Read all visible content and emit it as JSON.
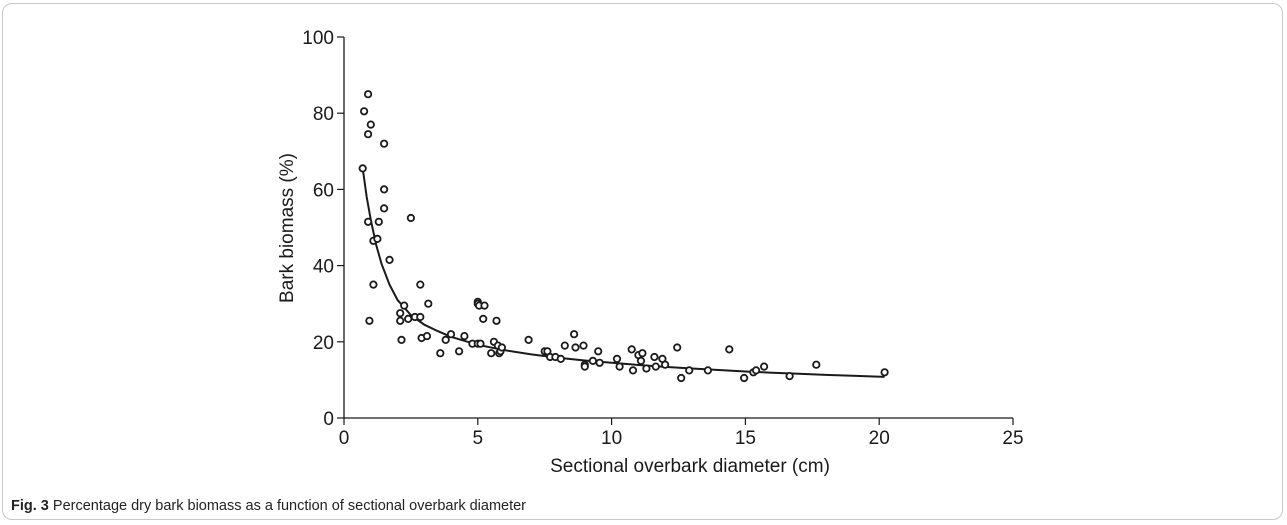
{
  "caption": {
    "label": "Fig. 3",
    "text": "Percentage dry bark biomass as a function of sectional overbark diameter"
  },
  "chart_data": {
    "type": "scatter",
    "xlabel": "Sectional overbark diameter (cm)",
    "ylabel": "Bark biomass (%)",
    "xlim": [
      0,
      25
    ],
    "ylim": [
      0,
      100
    ],
    "xticks": [
      0,
      5,
      10,
      15,
      20,
      25
    ],
    "yticks": [
      0,
      20,
      40,
      60,
      80,
      100
    ],
    "grid": false,
    "legend": "none",
    "series": [
      {
        "kind": "points",
        "marker": "open-circle",
        "color": "#1a1a1a",
        "points": [
          [
            0.7,
            65.5
          ],
          [
            0.75,
            80.5
          ],
          [
            0.9,
            85
          ],
          [
            0.9,
            74.5
          ],
          [
            1.0,
            77
          ],
          [
            0.9,
            51.5
          ],
          [
            0.95,
            25.5
          ],
          [
            1.1,
            46.5
          ],
          [
            1.1,
            35
          ],
          [
            1.25,
            47
          ],
          [
            1.3,
            51.5
          ],
          [
            1.5,
            72
          ],
          [
            1.5,
            60
          ],
          [
            1.5,
            55
          ],
          [
            1.7,
            41.5
          ],
          [
            2.1,
            27.5
          ],
          [
            2.1,
            25.5
          ],
          [
            2.15,
            20.5
          ],
          [
            2.25,
            29.5
          ],
          [
            2.4,
            26
          ],
          [
            2.5,
            52.5
          ],
          [
            2.65,
            26.5
          ],
          [
            2.85,
            35
          ],
          [
            2.85,
            26.5
          ],
          [
            2.9,
            21
          ],
          [
            3.1,
            21.5
          ],
          [
            3.15,
            30
          ],
          [
            3.6,
            17
          ],
          [
            3.8,
            20.5
          ],
          [
            4.0,
            22
          ],
          [
            4.3,
            17.5
          ],
          [
            4.5,
            21.5
          ],
          [
            4.8,
            19.5
          ],
          [
            5.0,
            30.5
          ],
          [
            5.0,
            30
          ],
          [
            5.05,
            29.5
          ],
          [
            5.0,
            19.5
          ],
          [
            5.1,
            19.5
          ],
          [
            5.2,
            26
          ],
          [
            5.25,
            29.5
          ],
          [
            5.5,
            17
          ],
          [
            5.6,
            20
          ],
          [
            5.7,
            25.5
          ],
          [
            5.75,
            19
          ],
          [
            5.8,
            17
          ],
          [
            5.85,
            17.5
          ],
          [
            5.9,
            18.5
          ],
          [
            6.9,
            20.5
          ],
          [
            7.5,
            17.5
          ],
          [
            7.6,
            17.5
          ],
          [
            7.7,
            16
          ],
          [
            7.9,
            16
          ],
          [
            8.1,
            15.5
          ],
          [
            8.25,
            19
          ],
          [
            8.6,
            22
          ],
          [
            8.65,
            18.5
          ],
          [
            8.95,
            19
          ],
          [
            9.0,
            14
          ],
          [
            9.0,
            13.5
          ],
          [
            9.3,
            15
          ],
          [
            9.5,
            17.5
          ],
          [
            9.55,
            14.5
          ],
          [
            10.2,
            15.5
          ],
          [
            10.3,
            13.5
          ],
          [
            10.75,
            18
          ],
          [
            10.8,
            12.5
          ],
          [
            11.0,
            16.5
          ],
          [
            11.1,
            15
          ],
          [
            11.15,
            17
          ],
          [
            11.3,
            13
          ],
          [
            11.6,
            16
          ],
          [
            11.65,
            13.5
          ],
          [
            11.9,
            15.5
          ],
          [
            12.0,
            14
          ],
          [
            12.45,
            18.5
          ],
          [
            12.6,
            10.5
          ],
          [
            12.9,
            12.5
          ],
          [
            13.6,
            12.5
          ],
          [
            14.4,
            18
          ],
          [
            14.95,
            10.5
          ],
          [
            15.3,
            12
          ],
          [
            15.4,
            12.5
          ],
          [
            15.7,
            13.5
          ],
          [
            16.65,
            11
          ],
          [
            17.65,
            14
          ],
          [
            20.2,
            12
          ]
        ]
      },
      {
        "kind": "fit-line",
        "color": "#1a1a1a",
        "x": [
          0.7,
          0.85,
          1.0,
          1.2,
          1.4,
          1.7,
          2.0,
          2.5,
          3.0,
          3.5,
          4.0,
          5.0,
          6.0,
          7.0,
          8.0,
          9.0,
          10.0,
          11.0,
          12.0,
          13.0,
          14.0,
          15.0,
          16.0,
          17.0,
          18.0,
          19.0,
          20.2
        ],
        "y": [
          65.5,
          58,
          52,
          45.5,
          40.5,
          35,
          31,
          27,
          24.5,
          22.8,
          21.3,
          19.2,
          17.8,
          16.7,
          15.8,
          15.1,
          14.5,
          13.9,
          13.4,
          13.0,
          12.6,
          12.2,
          11.9,
          11.6,
          11.3,
          11.1,
          10.8
        ]
      }
    ]
  }
}
